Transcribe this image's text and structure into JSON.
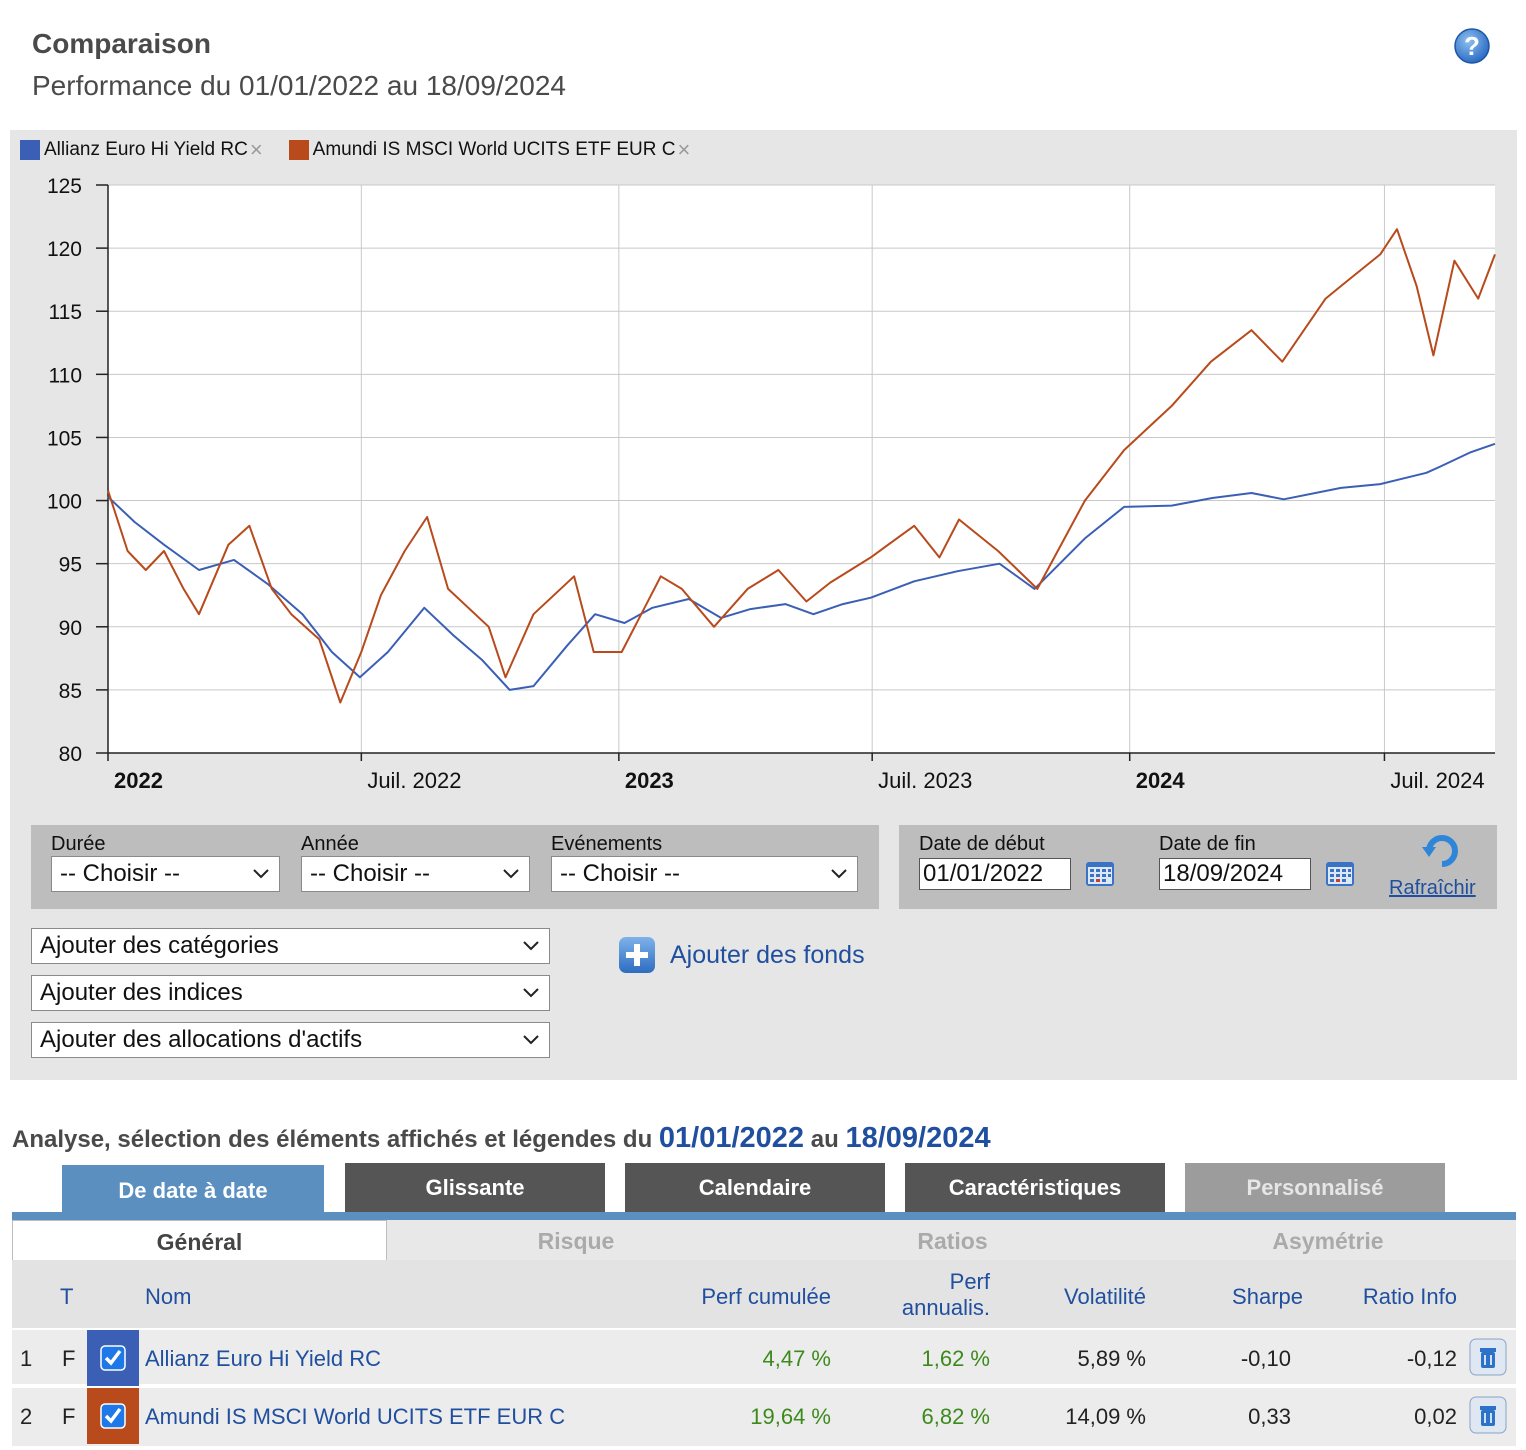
{
  "header": {
    "title": "Comparaison",
    "subtitle": "Performance du 01/01/2022 au 18/09/2024"
  },
  "colors": {
    "series1": "#3a5fb5",
    "series2": "#b84a1c",
    "link": "#1f4f9e",
    "positive": "#3d8a1c"
  },
  "chart_data": {
    "type": "line",
    "title": "",
    "xlabel": "",
    "ylabel": "",
    "ylim": [
      80,
      125
    ],
    "yticks": [
      80,
      85,
      90,
      95,
      100,
      105,
      110,
      115,
      120,
      125
    ],
    "xticks": [
      {
        "label": "2022",
        "date": "2022-01-01",
        "bold": true
      },
      {
        "label": "Juil. 2022",
        "date": "2022-07-01",
        "bold": false
      },
      {
        "label": "2023",
        "date": "2023-01-01",
        "bold": true
      },
      {
        "label": "Juil. 2023",
        "date": "2023-07-01",
        "bold": false
      },
      {
        "label": "2024",
        "date": "2024-01-01",
        "bold": true
      },
      {
        "label": "Juil. 2024",
        "date": "2024-07-01",
        "bold": false
      }
    ],
    "xrange": [
      "2022-01-01",
      "2024-09-18"
    ],
    "grid": true,
    "legend": "top-left",
    "series": [
      {
        "name": "Allianz Euro Hi Yield RC",
        "color": "#3a5fb5",
        "x": [
          "2022-01-01",
          "2022-01-20",
          "2022-02-10",
          "2022-03-07",
          "2022-04-01",
          "2022-04-25",
          "2022-05-20",
          "2022-06-10",
          "2022-06-30",
          "2022-07-20",
          "2022-08-15",
          "2022-09-05",
          "2022-09-25",
          "2022-10-15",
          "2022-11-01",
          "2022-11-25",
          "2022-12-15",
          "2023-01-05",
          "2023-01-25",
          "2023-02-20",
          "2023-03-15",
          "2023-04-05",
          "2023-04-30",
          "2023-05-20",
          "2023-06-10",
          "2023-06-30",
          "2023-07-31",
          "2023-08-31",
          "2023-09-30",
          "2023-10-25",
          "2023-11-30",
          "2023-12-28",
          "2024-01-31",
          "2024-02-29",
          "2024-03-28",
          "2024-04-20",
          "2024-05-31",
          "2024-06-28",
          "2024-07-31",
          "2024-08-10",
          "2024-08-31",
          "2024-09-18"
        ],
        "values": [
          100.3,
          98.3,
          96.5,
          94.5,
          95.3,
          93.4,
          91.0,
          88.0,
          86.0,
          88.0,
          91.5,
          89.3,
          87.4,
          85.0,
          85.3,
          88.5,
          91.0,
          90.3,
          91.5,
          92.2,
          90.7,
          91.4,
          91.8,
          91.0,
          91.8,
          92.3,
          93.6,
          94.4,
          95.0,
          93.0,
          97.0,
          99.5,
          99.6,
          100.2,
          100.6,
          100.1,
          101.0,
          101.3,
          102.2,
          102.7,
          103.8,
          104.5
        ]
      },
      {
        "name": "Amundi IS MSCI World UCITS ETF EUR C",
        "color": "#b84a1c",
        "x": [
          "2022-01-01",
          "2022-01-15",
          "2022-01-28",
          "2022-02-10",
          "2022-02-24",
          "2022-03-07",
          "2022-03-28",
          "2022-04-12",
          "2022-04-28",
          "2022-05-12",
          "2022-06-01",
          "2022-06-16",
          "2022-07-01",
          "2022-07-15",
          "2022-08-01",
          "2022-08-17",
          "2022-09-01",
          "2022-09-30",
          "2022-10-12",
          "2022-11-01",
          "2022-11-30",
          "2022-12-14",
          "2023-01-03",
          "2023-01-31",
          "2023-02-15",
          "2023-03-10",
          "2023-04-03",
          "2023-04-25",
          "2023-05-15",
          "2023-06-01",
          "2023-06-30",
          "2023-07-31",
          "2023-08-18",
          "2023-09-01",
          "2023-09-29",
          "2023-10-27",
          "2023-11-30",
          "2023-12-28",
          "2024-01-31",
          "2024-02-28",
          "2024-03-28",
          "2024-04-19",
          "2024-05-20",
          "2024-05-31",
          "2024-06-28",
          "2024-07-10",
          "2024-07-24",
          "2024-08-05",
          "2024-08-20",
          "2024-09-06",
          "2024-09-18"
        ],
        "values": [
          100.8,
          96.0,
          94.5,
          96.0,
          93.0,
          91.0,
          96.5,
          98.0,
          93.0,
          91.0,
          89.0,
          84.0,
          88.0,
          92.5,
          96.0,
          98.7,
          93.0,
          90.0,
          86.0,
          91.0,
          94.0,
          88.0,
          88.0,
          94.0,
          93.0,
          90.0,
          93.0,
          94.5,
          92.0,
          93.5,
          95.5,
          98.0,
          95.5,
          98.5,
          96.0,
          93.0,
          100.0,
          104.0,
          107.5,
          111.0,
          113.5,
          111.0,
          116.0,
          117.0,
          119.5,
          121.5,
          117.0,
          111.5,
          119.0,
          116.0,
          119.5
        ]
      }
    ]
  },
  "controls": {
    "duree_label": "Durée",
    "annee_label": "Année",
    "evenements_label": "Evénements",
    "choisir": "-- Choisir --",
    "date_debut_label": "Date de début",
    "date_fin_label": "Date de fin",
    "date_debut": "01/01/2022",
    "date_fin": "18/09/2024",
    "rafraichir": "Rafraîchir",
    "ajouter_categories": "Ajouter des catégories",
    "ajouter_indices": "Ajouter des indices",
    "ajouter_allocations": "Ajouter des allocations d'actifs",
    "ajouter_fonds": "Ajouter des fonds"
  },
  "analyse": {
    "prefix": "Analyse, sélection des éléments affichés et légendes du",
    "date_from": "01/01/2022",
    "middle": "au",
    "date_to": "18/09/2024"
  },
  "tabs": [
    {
      "label": "De date à date",
      "active": true
    },
    {
      "label": "Glissante",
      "active": false
    },
    {
      "label": "Calendaire",
      "active": false
    },
    {
      "label": "Caractéristiques",
      "active": false
    },
    {
      "label": "Personnalisé",
      "active": false
    }
  ],
  "subtabs": [
    {
      "label": "Général",
      "active": true
    },
    {
      "label": "Risque",
      "active": false
    },
    {
      "label": "Ratios",
      "active": false
    },
    {
      "label": "Asymétrie",
      "active": false
    }
  ],
  "table": {
    "headers": {
      "t": "T",
      "nom": "Nom",
      "perf_cumulee": "Perf cumulée",
      "perf_annualis_1": "Perf",
      "perf_annualis_2": "annualis.",
      "volatilite": "Volatilité",
      "sharpe": "Sharpe",
      "ratio_info": "Ratio Info"
    },
    "rows": [
      {
        "index": "1",
        "type": "F",
        "nom": "Allianz Euro Hi Yield RC",
        "perf_cumulee": "4,47 %",
        "perf_annualis": "1,62 %",
        "volatilite": "5,89 %",
        "sharpe": "-0,10",
        "ratio_info": "-0,12",
        "color": "#3a5fb5"
      },
      {
        "index": "2",
        "type": "F",
        "nom": "Amundi IS MSCI World UCITS ETF EUR C",
        "perf_cumulee": "19,64 %",
        "perf_annualis": "6,82 %",
        "volatilite": "14,09 %",
        "sharpe": "0,33",
        "ratio_info": "0,02",
        "color": "#b84a1c"
      }
    ]
  }
}
